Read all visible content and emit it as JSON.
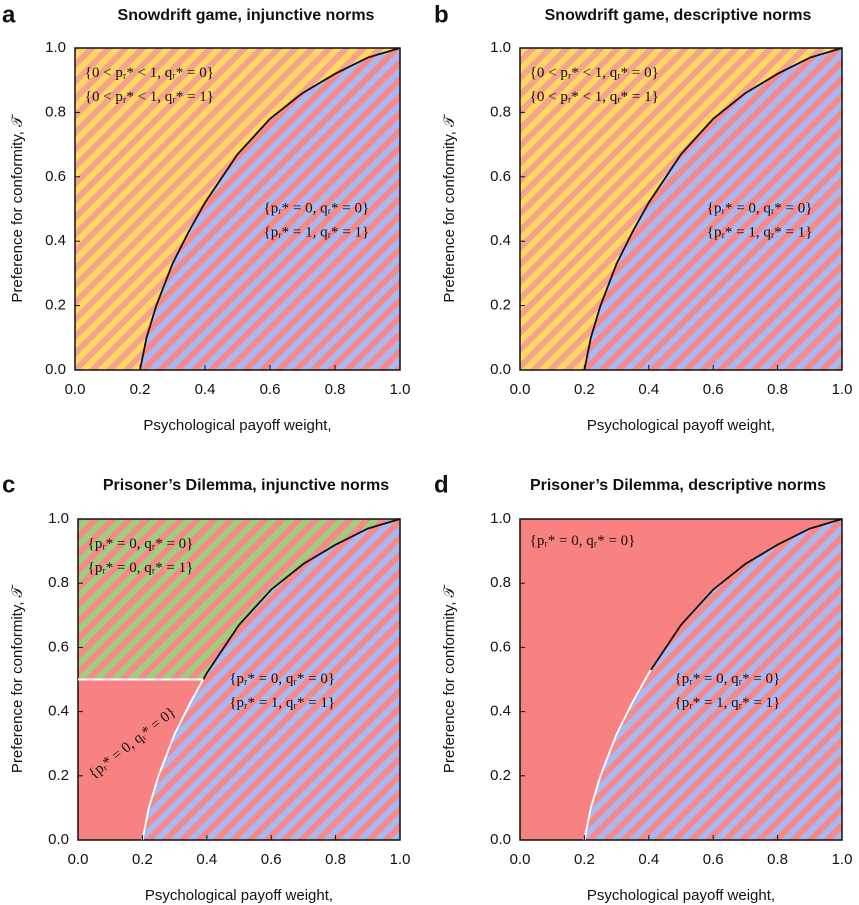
{
  "chart_data": [
    {
      "type": "region",
      "label": "a",
      "title": "Snowdrift game, injunctive norms",
      "xlabel": "Psychological payoff weight,",
      "ylabel": "Preference for conformity, 𝒯",
      "xlim": [
        0,
        1
      ],
      "ylim": [
        0,
        1
      ],
      "xticks": [
        {
          "value": 0,
          "label": "0.0"
        },
        {
          "value": 0.2,
          "label": "0.2"
        },
        {
          "value": 0.4,
          "label": "0.4"
        },
        {
          "value": 0.6,
          "label": "0.6"
        },
        {
          "value": 0.8,
          "label": "0.8"
        },
        {
          "value": 1,
          "label": "1.0"
        }
      ],
      "yticks": [
        {
          "value": 0,
          "label": "0.0"
        },
        {
          "value": 0.2,
          "label": "0.2"
        },
        {
          "value": 0.4,
          "label": "0.4"
        },
        {
          "value": 0.6,
          "label": "0.6"
        },
        {
          "value": 0.8,
          "label": "0.8"
        },
        {
          "value": 1,
          "label": "1.0"
        }
      ],
      "boundary": {
        "x": [
          0.2,
          0.22,
          0.25,
          0.3,
          0.35,
          0.4,
          0.5,
          0.6,
          0.7,
          0.8,
          0.9,
          1.0
        ],
        "y": [
          0,
          0.1,
          0.2,
          0.33,
          0.43,
          0.52,
          0.67,
          0.78,
          0.86,
          0.92,
          0.97,
          1.0
        ]
      },
      "regions": [
        {
          "lines": [
            "{0 < pᵣ* < 1, qᵣ* = 0}",
            "{0 < pᵣ* < 1, qᵣ* = 1}"
          ],
          "colors": [
            "#ffd862",
            "#f6a38e"
          ]
        },
        {
          "lines": [
            "{pᵣ* = 0, qᵣ* = 0}",
            "{pᵣ* = 1, qᵣ* = 1}"
          ],
          "colors": [
            "#aab8f2",
            "#f68a8a"
          ]
        }
      ]
    },
    {
      "type": "region",
      "label": "b",
      "title": "Snowdrift game, descriptive norms",
      "xlabel": "Psychological payoff weight,",
      "ylabel": "Preference for conformity, 𝒯",
      "xlim": [
        0,
        1
      ],
      "ylim": [
        0,
        1
      ],
      "xticks": [
        {
          "value": 0,
          "label": "0.0"
        },
        {
          "value": 0.2,
          "label": "0.2"
        },
        {
          "value": 0.4,
          "label": "0.4"
        },
        {
          "value": 0.6,
          "label": "0.6"
        },
        {
          "value": 0.8,
          "label": "0.8"
        },
        {
          "value": 1,
          "label": "1.0"
        }
      ],
      "yticks": [
        {
          "value": 0,
          "label": "0.0"
        },
        {
          "value": 0.2,
          "label": "0.2"
        },
        {
          "value": 0.4,
          "label": "0.4"
        },
        {
          "value": 0.6,
          "label": "0.6"
        },
        {
          "value": 0.8,
          "label": "0.8"
        },
        {
          "value": 1,
          "label": "1.0"
        }
      ],
      "boundary": {
        "x": [
          0.2,
          0.22,
          0.25,
          0.3,
          0.35,
          0.4,
          0.5,
          0.6,
          0.7,
          0.8,
          0.9,
          1.0
        ],
        "y": [
          0,
          0.1,
          0.2,
          0.33,
          0.43,
          0.52,
          0.67,
          0.78,
          0.86,
          0.92,
          0.97,
          1.0
        ]
      },
      "regions": [
        {
          "lines": [
            "{0 < pᵣ* < 1, qᵣ* = 0}",
            "{0 < pᵣ* < 1, qᵣ* = 1}"
          ],
          "colors": [
            "#ffd862",
            "#f6a38e"
          ]
        },
        {
          "lines": [
            "{pᵣ* = 0, qᵣ* = 0}",
            "{pᵣ* = 1, qᵣ* = 1}"
          ],
          "colors": [
            "#aab8f2",
            "#f68a8a"
          ]
        }
      ]
    },
    {
      "type": "region",
      "label": "c",
      "title": "Prisoner’s Dilemma, injunctive norms",
      "xlabel": "Psychological payoff weight,",
      "ylabel": "Preference for conformity, 𝒯",
      "xlim": [
        0,
        1
      ],
      "ylim": [
        0,
        1
      ],
      "xticks": [
        {
          "value": 0,
          "label": "0.0"
        },
        {
          "value": 0.2,
          "label": "0.2"
        },
        {
          "value": 0.4,
          "label": "0.4"
        },
        {
          "value": 0.6,
          "label": "0.6"
        },
        {
          "value": 0.8,
          "label": "0.8"
        },
        {
          "value": 1,
          "label": "1.0"
        }
      ],
      "yticks": [
        {
          "value": 0,
          "label": "0.0"
        },
        {
          "value": 0.2,
          "label": "0.2"
        },
        {
          "value": 0.4,
          "label": "0.4"
        },
        {
          "value": 0.6,
          "label": "0.6"
        },
        {
          "value": 0.8,
          "label": "0.8"
        },
        {
          "value": 1,
          "label": "1.0"
        }
      ],
      "boundary": {
        "x": [
          0.2,
          0.22,
          0.25,
          0.3,
          0.35,
          0.4,
          0.5,
          0.6,
          0.7,
          0.8,
          0.9,
          1.0
        ],
        "y": [
          0,
          0.1,
          0.2,
          0.33,
          0.43,
          0.52,
          0.67,
          0.78,
          0.86,
          0.92,
          0.97,
          1.0
        ]
      },
      "threshold": 0.5,
      "regions": [
        {
          "lines": [
            "{pᵣ* = 0, qᵣ* = 0}",
            "{pᵣ* = 0, qᵣ* = 1}"
          ],
          "colors": [
            "#9fcf7c",
            "#f68a8a"
          ]
        },
        {
          "lines": [
            "{pᵣ* = 0, qᵣ* = 0}",
            "{pᵣ* = 1, qᵣ* = 1}"
          ],
          "colors": [
            "#aab8f2",
            "#f68a8a"
          ]
        },
        {
          "lines": [
            "{pᵣ* = 0, qᵣ* = 0}"
          ],
          "colors": [
            "#f88282"
          ]
        }
      ]
    },
    {
      "type": "region",
      "label": "d",
      "title": "Prisoner’s Dilemma, descriptive norms",
      "xlabel": "Psychological payoff weight,",
      "ylabel": "Preference for conformity, 𝒯",
      "xlim": [
        0,
        1
      ],
      "ylim": [
        0,
        1
      ],
      "xticks": [
        {
          "value": 0,
          "label": "0.0"
        },
        {
          "value": 0.2,
          "label": "0.2"
        },
        {
          "value": 0.4,
          "label": "0.4"
        },
        {
          "value": 0.6,
          "label": "0.6"
        },
        {
          "value": 0.8,
          "label": "0.8"
        },
        {
          "value": 1,
          "label": "1.0"
        }
      ],
      "yticks": [
        {
          "value": 0,
          "label": "0.0"
        },
        {
          "value": 0.2,
          "label": "0.2"
        },
        {
          "value": 0.4,
          "label": "0.4"
        },
        {
          "value": 0.6,
          "label": "0.6"
        },
        {
          "value": 0.8,
          "label": "0.8"
        },
        {
          "value": 1,
          "label": "1.0"
        }
      ],
      "boundary": {
        "x": [
          0.2,
          0.22,
          0.25,
          0.3,
          0.35,
          0.4,
          0.5,
          0.6,
          0.7,
          0.8,
          0.9,
          1.0
        ],
        "y": [
          0,
          0.1,
          0.2,
          0.33,
          0.43,
          0.52,
          0.67,
          0.78,
          0.86,
          0.92,
          0.97,
          1.0
        ]
      },
      "threshold": 0.53,
      "regions": [
        {
          "lines": [
            "{pᵣ* = 0, qᵣ* = 0}"
          ],
          "colors": [
            "#f88282"
          ]
        },
        {
          "lines": [
            "{pᵣ* = 0, qᵣ* = 0}",
            "{pᵣ* = 1, qᵣ* = 1}"
          ],
          "colors": [
            "#aab8f2",
            "#f68a8a"
          ]
        }
      ]
    }
  ]
}
